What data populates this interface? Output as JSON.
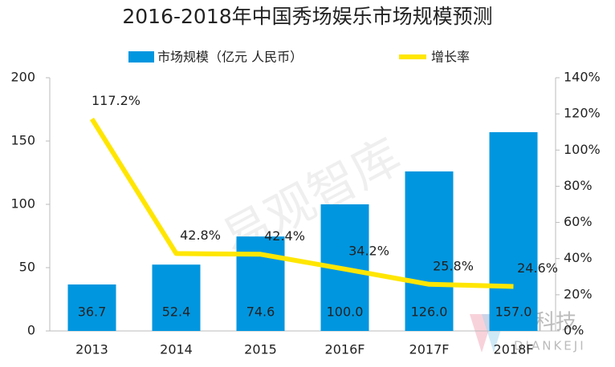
{
  "chart_data": {
    "type": "bar",
    "title": "2016-2018年中国秀场娱乐市场规模预测",
    "categories": [
      "2013",
      "2014",
      "2015",
      "2016F",
      "2017F",
      "2018F"
    ],
    "series": [
      {
        "name": "市场规模（亿元 人民币）",
        "color": "#0096df",
        "values": [
          36.7,
          52.4,
          74.6,
          100.0,
          126.0,
          157.0
        ],
        "value_labels": [
          "36.7",
          "52.4",
          "74.6",
          "100.0",
          "126.0",
          "157.0"
        ]
      },
      {
        "name": "增长率",
        "color": "#ffe600",
        "type": "line",
        "axis": "y2",
        "values": [
          117.2,
          42.8,
          42.4,
          34.2,
          25.8,
          24.6
        ],
        "value_labels": [
          "117.2%",
          "42.8%",
          "42.4%",
          "34.2%",
          "25.8%",
          "24.6%"
        ]
      }
    ],
    "ylim": [
      0,
      200
    ],
    "yticks": [
      0,
      50,
      100,
      150,
      200
    ],
    "y2lim": [
      0,
      140
    ],
    "y2ticks": [
      {
        "value": 0,
        "label": "0%"
      },
      {
        "value": 20,
        "label": "20%"
      },
      {
        "value": 40,
        "label": "40%"
      },
      {
        "value": 60,
        "label": "60%"
      },
      {
        "value": 80,
        "label": "80%"
      },
      {
        "value": 100,
        "label": "100%"
      },
      {
        "value": 120,
        "label": "120%"
      },
      {
        "value": 140,
        "label": "140%"
      }
    ],
    "legend": "top",
    "watermark": "易观智库",
    "logo_text": "电科技",
    "logo_subtext": "DIANKEJI"
  }
}
